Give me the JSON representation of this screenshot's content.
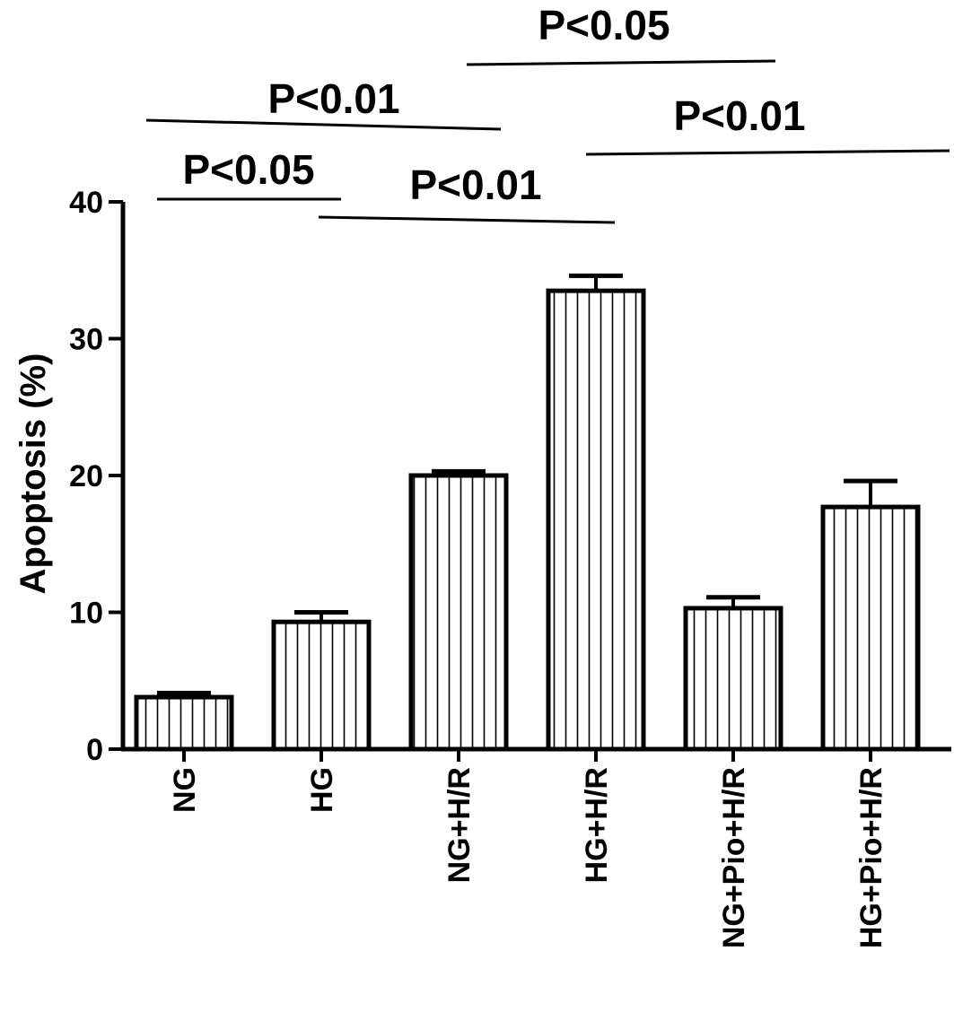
{
  "chart_data": {
    "type": "bar",
    "title": "",
    "xlabel": "",
    "ylabel": "Apoptosis (%)",
    "ylim": [
      0,
      40
    ],
    "yticks": [
      0,
      10,
      20,
      30,
      40
    ],
    "categories": [
      "NG",
      "HG",
      "NG+H/R",
      "HG+H/R",
      "NG+Pio+H/R",
      "HG+Pio+H/R"
    ],
    "values": [
      3.8,
      9.3,
      20.0,
      33.5,
      10.3,
      17.7
    ],
    "errors": [
      0.3,
      0.7,
      0.3,
      1.1,
      0.8,
      1.9
    ],
    "bar_fill": "vertical-hatch",
    "grid": false,
    "legend": "none",
    "comparisons": [
      {
        "from": "NG",
        "to": "HG",
        "label": "P<0.05"
      },
      {
        "from": "HG",
        "to": "HG+H/R",
        "label": "P<0.01"
      },
      {
        "from": "NG",
        "to": "NG+H/R",
        "label": "P<0.01"
      },
      {
        "from": "NG+H/R",
        "to": "HG+Pio+H/R",
        "label": "P<0.05"
      },
      {
        "from": "HG+H/R",
        "to": "HG+Pio+H/R",
        "label": "P<0.01"
      }
    ],
    "colors": {
      "ink": "#000000",
      "background": "#ffffff"
    }
  }
}
